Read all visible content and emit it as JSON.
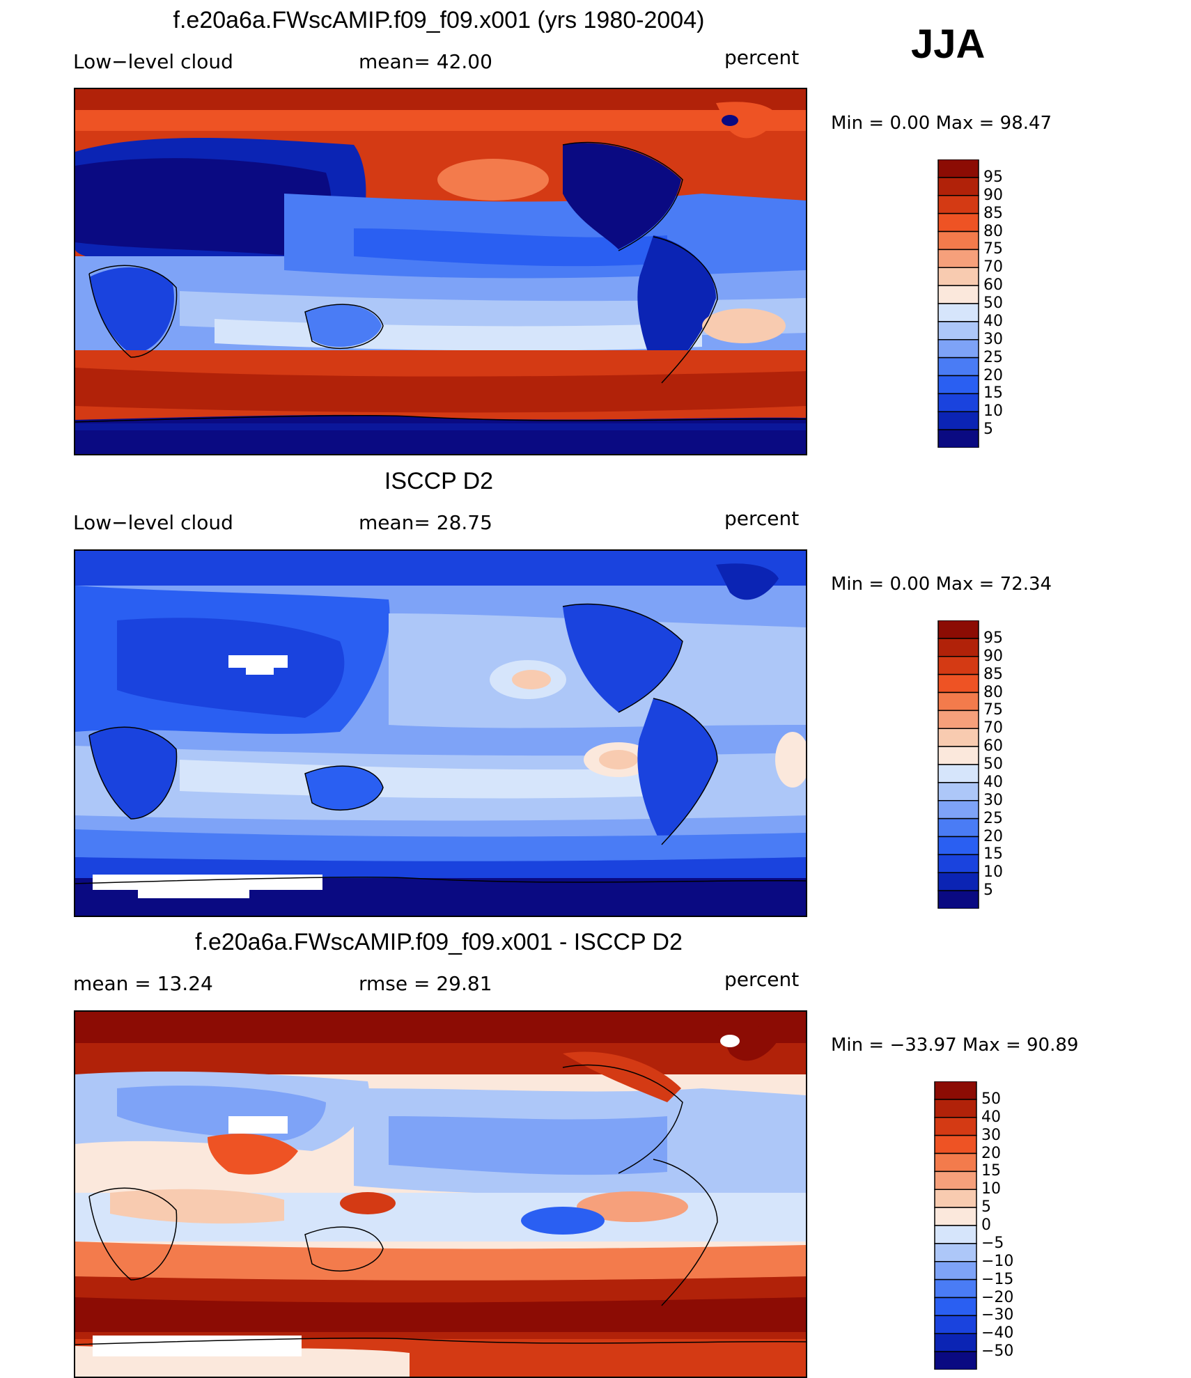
{
  "season": "JJA",
  "colors": {
    "scale_pos": [
      "#0a0a82",
      "#0b24b4",
      "#1a43de",
      "#2a5ff2",
      "#4a7cf5",
      "#7ea3f7",
      "#adc7f8",
      "#d6e5fb",
      "#fbe8dc",
      "#f8cbb0",
      "#f6a07b",
      "#f37b4c",
      "#ee5324",
      "#d43a14",
      "#b12209",
      "#8c0c04"
    ],
    "scale_diff": [
      "#0a0a82",
      "#0b24b4",
      "#1a43de",
      "#2a5ff2",
      "#4a7cf5",
      "#7ea3f7",
      "#adc7f8",
      "#d6e5fb",
      "#fbe8dc",
      "#f8cbb0",
      "#f6a07b",
      "#f37b4c",
      "#ee5324",
      "#d43a14",
      "#b12209",
      "#8c0c04"
    ]
  },
  "panels": [
    {
      "title": "f.e20a6a.FWscAMIP.f09_f09.x001 (yrs 1980-2004)",
      "left_label": "Low−level cloud",
      "mid_label": "mean=   42.00",
      "right_label": "percent",
      "minmax": "Min =      0.00  Max  =    98.47",
      "colorbar_labels": [
        "95",
        "90",
        "85",
        "80",
        "75",
        "70",
        "60",
        "50",
        "40",
        "30",
        "25",
        "20",
        "15",
        "10",
        "5"
      ]
    },
    {
      "title": "ISCCP D2",
      "left_label": "Low−level cloud",
      "mid_label": "mean=   28.75",
      "right_label": "percent",
      "minmax": "Min =      0.00  Max  =    72.34",
      "colorbar_labels": [
        "95",
        "90",
        "85",
        "80",
        "75",
        "70",
        "60",
        "50",
        "40",
        "30",
        "25",
        "20",
        "15",
        "10",
        "5"
      ]
    },
    {
      "title": "f.e20a6a.FWscAMIP.f09_f09.x001 - ISCCP D2",
      "left_label": "mean  =    13.24",
      "mid_label": "rmse  =    29.81",
      "right_label": "percent",
      "minmax": "Min  = −33.97  Max  =    90.89",
      "colorbar_labels": [
        "50",
        "40",
        "30",
        "20",
        "15",
        "10",
        "5",
        "0",
        "−5",
        "−10",
        "−15",
        "−20",
        "−30",
        "−40",
        "−50"
      ]
    }
  ]
}
